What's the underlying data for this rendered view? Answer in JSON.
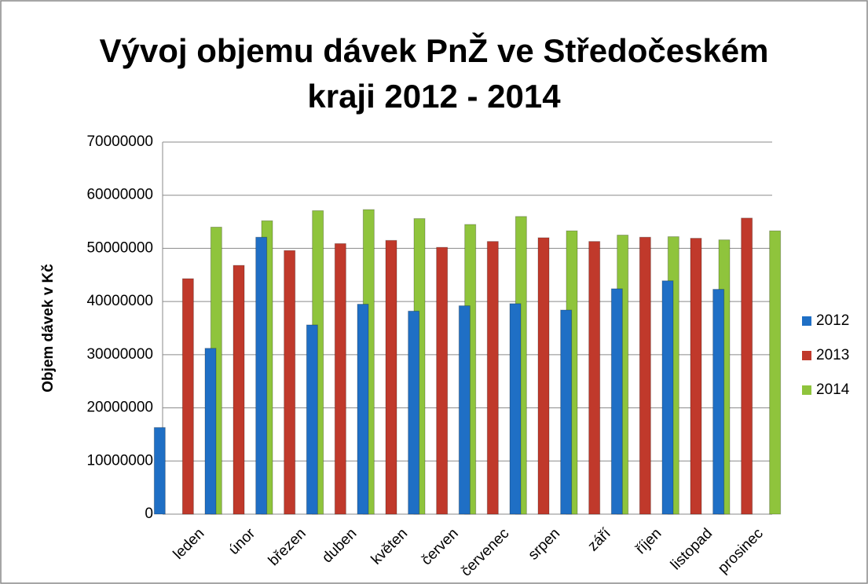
{
  "chart_data": {
    "type": "bar",
    "title": "Vývoj objemu dávek PnŽ ve Středočeském kraji 2012 - 2014",
    "y_label": "Objem dávek v Kč",
    "categories": [
      "leden",
      "únor",
      "březen",
      "duben",
      "květen",
      "červen",
      "červenec",
      "srpen",
      "září",
      "říjen",
      "listopad",
      "prosinec"
    ],
    "series": [
      {
        "name": "2012",
        "color": "#1f6fc5",
        "values": [
          16300000,
          31200000,
          52100000,
          35600000,
          39500000,
          38200000,
          39200000,
          39600000,
          38400000,
          42400000,
          43900000,
          42300000
        ]
      },
      {
        "name": "2013",
        "color": "#c0392b",
        "values": [
          44300000,
          46800000,
          49600000,
          50900000,
          51500000,
          50200000,
          51300000,
          52000000,
          51300000,
          52100000,
          51900000,
          55700000
        ]
      },
      {
        "name": "2014",
        "color": "#8fc43c",
        "values": [
          54000000,
          55200000,
          57100000,
          57300000,
          55600000,
          54500000,
          56000000,
          53300000,
          52500000,
          52200000,
          51600000,
          53300000
        ]
      }
    ],
    "ylim": [
      0,
      70000000
    ],
    "yticks": [
      0,
      10000000,
      20000000,
      30000000,
      40000000,
      50000000,
      60000000,
      70000000
    ],
    "grid": true,
    "legend": "right"
  }
}
